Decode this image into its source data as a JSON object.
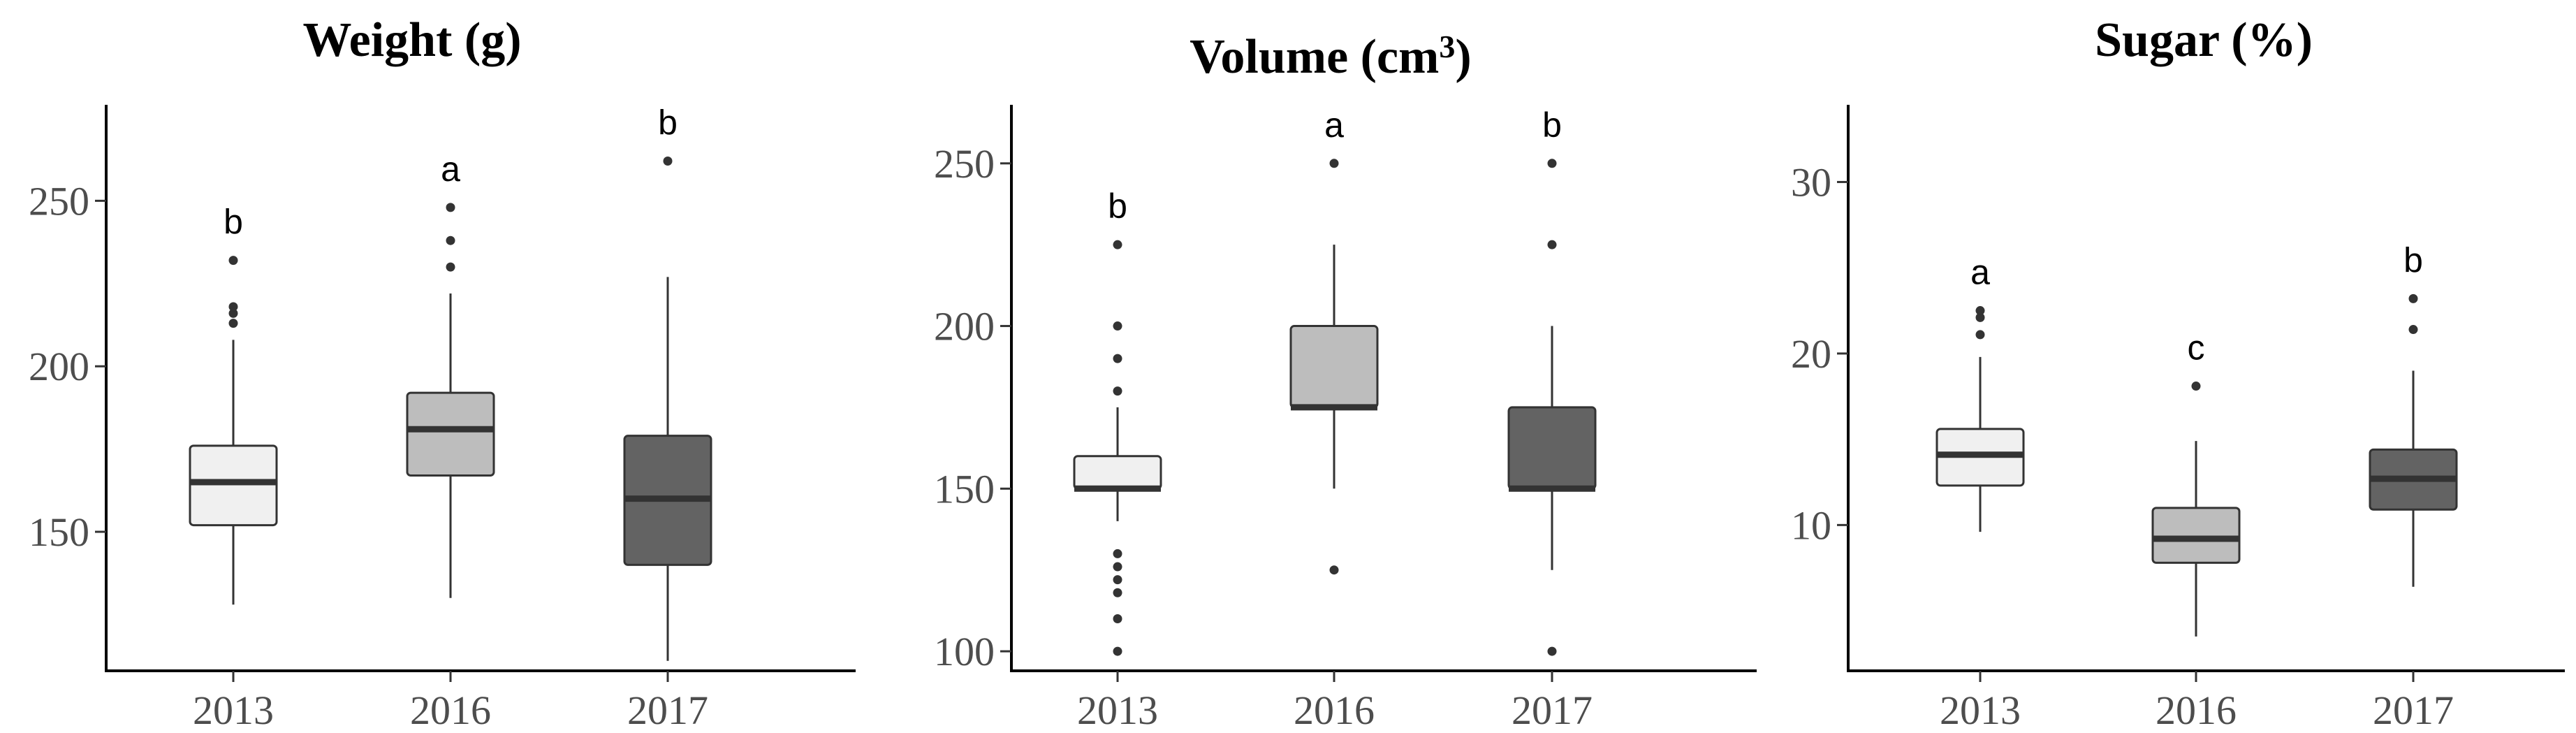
{
  "chart_data": [
    {
      "type": "boxplot",
      "title": "Weight (g)",
      "xlabel": "",
      "ylabel": "",
      "categories": [
        "2013",
        "2016",
        "2017"
      ],
      "yticks": [
        150,
        200,
        250
      ],
      "ylim": [
        108,
        279
      ],
      "boxes": [
        {
          "q1": 152,
          "median": 165,
          "q3": 176,
          "whisker_low": 128,
          "whisker_high": 208,
          "outliers": [
            213,
            216,
            218,
            232
          ],
          "fill": "#f0f0f0",
          "letter": "b"
        },
        {
          "q1": 167,
          "median": 181,
          "q3": 192,
          "whisker_low": 130,
          "whisker_high": 222,
          "outliers": [
            230,
            238,
            248
          ],
          "fill": "#bdbdbd",
          "letter": "a"
        },
        {
          "q1": 140,
          "median": 160,
          "q3": 179,
          "whisker_low": 111,
          "whisker_high": 227,
          "outliers": [
            262
          ],
          "fill": "#636363",
          "letter": "b"
        }
      ]
    },
    {
      "type": "boxplot",
      "title": "Volume (cm",
      "title_sup": "3",
      "title_end": ")",
      "xlabel": "",
      "ylabel": "",
      "categories": [
        "2013",
        "2016",
        "2017"
      ],
      "yticks": [
        100,
        150,
        200,
        250
      ],
      "ylim": [
        94,
        268
      ],
      "boxes": [
        {
          "q1": 150,
          "median": 150,
          "q3": 160,
          "whisker_low": 140,
          "whisker_high": 175,
          "outliers": [
            100,
            110,
            118,
            122,
            126,
            130,
            180,
            190,
            200,
            225
          ],
          "fill": "#f0f0f0",
          "letter": "b"
        },
        {
          "q1": 175,
          "median": 175,
          "q3": 200,
          "whisker_low": 150,
          "whisker_high": 225,
          "outliers": [
            125,
            250
          ],
          "fill": "#bdbdbd",
          "letter": "a"
        },
        {
          "q1": 150,
          "median": 150,
          "q3": 175,
          "whisker_low": 125,
          "whisker_high": 200,
          "outliers": [
            100,
            225,
            250
          ],
          "fill": "#636363",
          "letter": "b"
        }
      ]
    },
    {
      "type": "boxplot",
      "title": "Sugar (%)",
      "xlabel": "",
      "ylabel": "",
      "categories": [
        "2013",
        "2016",
        "2017"
      ],
      "yticks": [
        10,
        20,
        30
      ],
      "ylim": [
        1.5,
        34.5
      ],
      "boxes": [
        {
          "q1": 12.3,
          "median": 14.1,
          "q3": 15.6,
          "whisker_low": 9.6,
          "whisker_high": 19.8,
          "outliers": [
            21.1,
            22.1,
            22.5
          ],
          "fill": "#f0f0f0",
          "letter": "a"
        },
        {
          "q1": 7.8,
          "median": 9.2,
          "q3": 11.0,
          "whisker_low": 3.5,
          "whisker_high": 14.9,
          "outliers": [
            18.1
          ],
          "fill": "#bdbdbd",
          "letter": "c"
        },
        {
          "q1": 10.9,
          "median": 12.7,
          "q3": 14.4,
          "whisker_low": 6.4,
          "whisker_high": 19.0,
          "outliers": [
            21.4,
            23.2
          ],
          "fill": "#636363",
          "letter": "b"
        }
      ]
    }
  ]
}
